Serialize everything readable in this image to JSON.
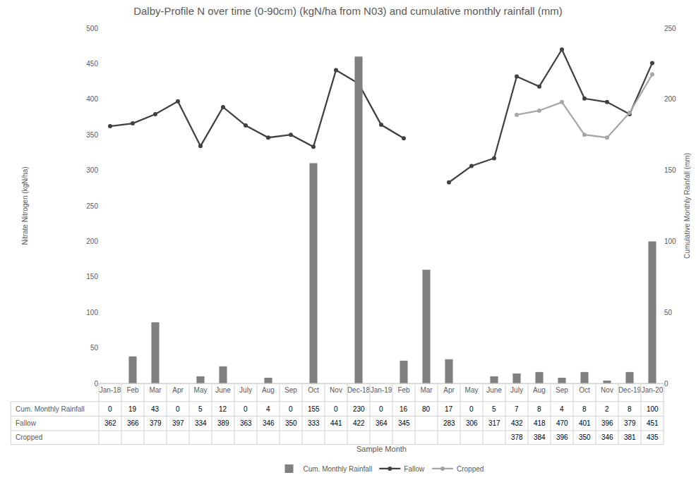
{
  "chart_data": {
    "type": "bar_line",
    "title": "Dalby-Profile N over time (0-90cm) (kgN/ha from N03) and cumulative monthly rainfall (mm)",
    "x_label": "Sample Month",
    "y_label": "Nitrate Nitrogen (kgN/ha)",
    "y2_label": "Cumulative Monthly Rainfall (mm)",
    "categories": [
      "Jan-18",
      "Feb",
      "Mar",
      "Apr",
      "May",
      "June",
      "July",
      "Aug",
      "Sep",
      "Oct",
      "Nov",
      "Dec-18",
      "Jan-19",
      "Feb",
      "Mar",
      "Apr",
      "May",
      "June",
      "July",
      "Aug",
      "Sep",
      "Oct",
      "Nov",
      "Dec-19",
      "Jan-20"
    ],
    "series": [
      {
        "name": "Cum. Monthly Rainfall",
        "type": "bar",
        "axis": "y2",
        "color": "#808080",
        "values": [
          0,
          19,
          43,
          0,
          5,
          12,
          0,
          4,
          0,
          155,
          0,
          230,
          0,
          16,
          80,
          17,
          0,
          5,
          7,
          8,
          4,
          8,
          2,
          8,
          100
        ]
      },
      {
        "name": "Fallow",
        "type": "line",
        "marker": "circle",
        "color": "#404040",
        "values": [
          362,
          366,
          379,
          397,
          334,
          389,
          363,
          346,
          350,
          333,
          441,
          422,
          364,
          345,
          null,
          283,
          306,
          317,
          432,
          418,
          470,
          401,
          396,
          379,
          451
        ]
      },
      {
        "name": "Cropped",
        "type": "line",
        "marker": "circle",
        "color": "#a6a6a6",
        "values": [
          null,
          null,
          null,
          null,
          null,
          null,
          null,
          null,
          null,
          null,
          null,
          null,
          null,
          null,
          null,
          null,
          null,
          null,
          378,
          384,
          396,
          350,
          346,
          381,
          435
        ]
      }
    ],
    "ylim": [
      0,
      500
    ],
    "yticks": [
      0,
      50,
      100,
      150,
      200,
      250,
      300,
      350,
      400,
      450,
      500
    ],
    "y2lim": [
      0,
      250
    ],
    "y2ticks": [
      0,
      50,
      100,
      150,
      200,
      250
    ],
    "grid": false,
    "legend": "bottom"
  }
}
